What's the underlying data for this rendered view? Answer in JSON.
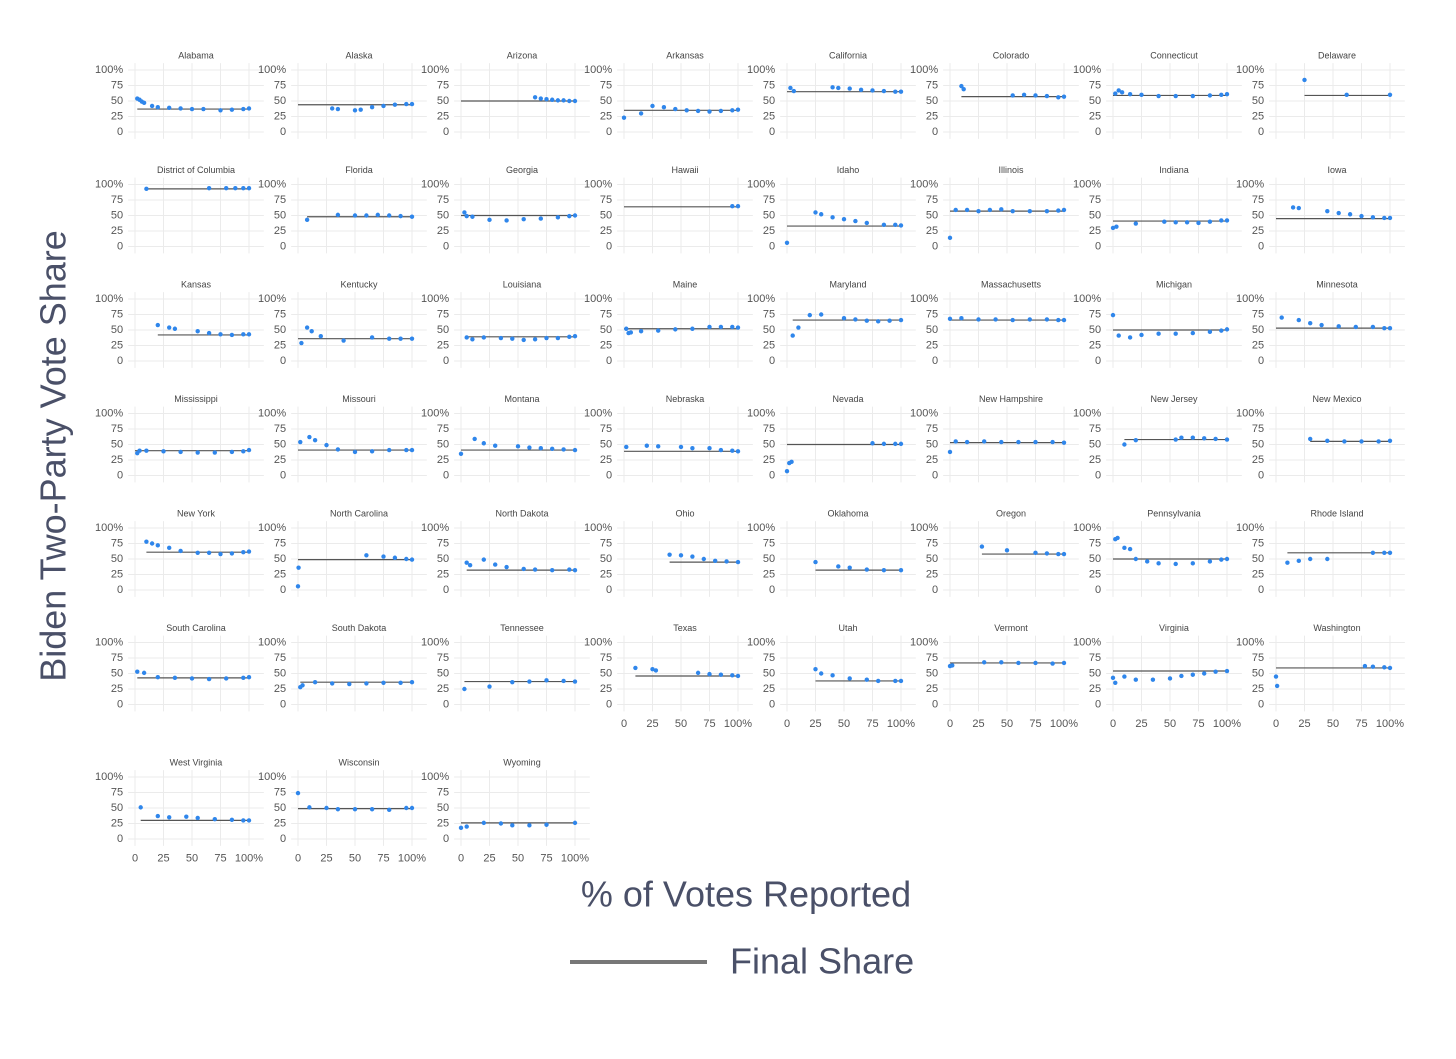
{
  "axes": {
    "ylabel": "Biden Two-Party Vote Share",
    "xlabel": "% of Votes Reported",
    "xlim": [
      -6,
      113
    ],
    "ylim": [
      -11,
      111
    ],
    "xticks": [
      0,
      25,
      50,
      75,
      {
        "value": 100,
        "label": "100%"
      }
    ],
    "yticks": [
      0,
      25,
      50,
      75,
      {
        "value": 100,
        "label": "100%"
      }
    ],
    "grid": true
  },
  "legend": {
    "label": "Final Share",
    "color": "#777777"
  },
  "point_color": "#2f86eb",
  "chart_data": [
    {
      "type": "scatter",
      "title": "Alabama",
      "x": [
        2,
        4,
        6,
        8,
        15,
        20,
        30,
        40,
        50,
        60,
        75,
        85,
        95,
        100
      ],
      "values": [
        54,
        52,
        49,
        47,
        42,
        40,
        39,
        38,
        37,
        37,
        35,
        36,
        37,
        38
      ],
      "final_share": 37
    },
    {
      "type": "scatter",
      "title": "Alaska",
      "x": [
        0,
        30,
        35,
        50,
        55,
        65,
        75,
        85,
        95,
        100
      ],
      "values": [
        null,
        38,
        37,
        35,
        36,
        40,
        42,
        44,
        45,
        45
      ],
      "final_share": 44
    },
    {
      "type": "scatter",
      "title": "Arizona",
      "x": [
        0,
        65,
        70,
        75,
        80,
        85,
        90,
        95,
        100
      ],
      "values": [
        null,
        56,
        54,
        53,
        52,
        51,
        51,
        50,
        50
      ],
      "final_share": 50
    },
    {
      "type": "scatter",
      "title": "Arkansas",
      "x": [
        0,
        15,
        25,
        35,
        45,
        55,
        65,
        75,
        85,
        95,
        100
      ],
      "values": [
        23,
        30,
        42,
        40,
        37,
        35,
        34,
        33,
        34,
        35,
        36
      ],
      "final_share": 35
    },
    {
      "type": "scatter",
      "title": "California",
      "x": [
        0,
        3,
        6,
        40,
        45,
        55,
        65,
        75,
        85,
        95,
        100
      ],
      "values": [
        null,
        71,
        66,
        72,
        71,
        70,
        68,
        67,
        66,
        65,
        65
      ],
      "final_share": 65
    },
    {
      "type": "scatter",
      "title": "Colorado",
      "x": [
        10,
        12,
        55,
        65,
        75,
        85,
        95,
        100
      ],
      "values": [
        74,
        69,
        59,
        60,
        59,
        58,
        56,
        57
      ],
      "final_share": 57
    },
    {
      "type": "scatter",
      "title": "Connecticut",
      "x": [
        0,
        2,
        5,
        8,
        15,
        25,
        40,
        55,
        70,
        85,
        95,
        100
      ],
      "values": [
        null,
        62,
        67,
        64,
        61,
        60,
        58,
        58,
        58,
        59,
        60,
        61
      ],
      "final_share": 59
    },
    {
      "type": "scatter",
      "title": "Delaware",
      "x": [
        25,
        62,
        100
      ],
      "values": [
        84,
        60,
        60
      ],
      "final_share": 59
    },
    {
      "type": "scatter",
      "title": "District of Columbia",
      "x": [
        10,
        65,
        80,
        88,
        95,
        100
      ],
      "values": [
        93,
        94,
        94,
        94,
        94,
        94
      ],
      "final_share": 93
    },
    {
      "type": "scatter",
      "title": "Florida",
      "x": [
        8,
        35,
        50,
        60,
        70,
        80,
        90,
        100
      ],
      "values": [
        43,
        51,
        50,
        50,
        51,
        50,
        49,
        48
      ],
      "final_share": 48
    },
    {
      "type": "scatter",
      "title": "Georgia",
      "x": [
        0,
        3,
        5,
        10,
        25,
        40,
        55,
        70,
        85,
        95,
        100
      ],
      "values": [
        null,
        55,
        49,
        48,
        43,
        42,
        44,
        45,
        47,
        49,
        50
      ],
      "final_share": 50
    },
    {
      "type": "scatter",
      "title": "Hawaii",
      "x": [
        0,
        95,
        100
      ],
      "values": [
        null,
        65,
        65
      ],
      "final_share": 64
    },
    {
      "type": "scatter",
      "title": "Idaho",
      "x": [
        0,
        25,
        30,
        40,
        50,
        60,
        70,
        85,
        95,
        100
      ],
      "values": [
        6,
        55,
        52,
        47,
        44,
        41,
        38,
        35,
        35,
        34
      ],
      "final_share": 33
    },
    {
      "type": "scatter",
      "title": "Illinois",
      "x": [
        0,
        5,
        15,
        25,
        35,
        45,
        55,
        70,
        85,
        95,
        100
      ],
      "values": [
        14,
        59,
        59,
        57,
        59,
        60,
        57,
        57,
        57,
        58,
        59
      ],
      "final_share": 57
    },
    {
      "type": "scatter",
      "title": "Indiana",
      "x": [
        0,
        3,
        20,
        45,
        55,
        65,
        75,
        85,
        95,
        100
      ],
      "values": [
        30,
        32,
        37,
        40,
        39,
        39,
        38,
        40,
        42,
        42
      ],
      "final_share": 41
    },
    {
      "type": "scatter",
      "title": "Iowa",
      "x": [
        0,
        15,
        20,
        45,
        55,
        65,
        75,
        85,
        95,
        100
      ],
      "values": [
        null,
        63,
        62,
        57,
        54,
        52,
        49,
        47,
        46,
        46
      ],
      "final_share": 45
    },
    {
      "type": "scatter",
      "title": "Kansas",
      "x": [
        20,
        30,
        35,
        55,
        65,
        75,
        85,
        95,
        100
      ],
      "values": [
        58,
        54,
        52,
        48,
        45,
        43,
        42,
        43,
        43
      ],
      "final_share": 42
    },
    {
      "type": "scatter",
      "title": "Kentucky",
      "x": [
        0,
        3,
        8,
        12,
        20,
        40,
        65,
        80,
        90,
        100
      ],
      "values": [
        null,
        29,
        54,
        48,
        40,
        33,
        38,
        36,
        36,
        36
      ],
      "final_share": 36
    },
    {
      "type": "scatter",
      "title": "Louisiana",
      "x": [
        5,
        10,
        20,
        35,
        45,
        55,
        65,
        75,
        85,
        95,
        100
      ],
      "values": [
        38,
        35,
        38,
        37,
        36,
        34,
        35,
        37,
        37,
        39,
        40
      ],
      "final_share": 39
    },
    {
      "type": "scatter",
      "title": "Maine",
      "x": [
        0,
        2,
        4,
        6,
        15,
        30,
        45,
        60,
        75,
        85,
        95,
        100
      ],
      "values": [
        null,
        52,
        45,
        46,
        48,
        49,
        51,
        52,
        55,
        55,
        55,
        54
      ],
      "final_share": 52
    },
    {
      "type": "scatter",
      "title": "Maryland",
      "x": [
        5,
        10,
        20,
        30,
        50,
        60,
        70,
        80,
        90,
        100
      ],
      "values": [
        41,
        54,
        74,
        75,
        69,
        67,
        65,
        64,
        65,
        66
      ],
      "final_share": 66
    },
    {
      "type": "scatter",
      "title": "Massachusetts",
      "x": [
        0,
        10,
        25,
        40,
        55,
        70,
        85,
        95,
        100
      ],
      "values": [
        68,
        69,
        67,
        67,
        66,
        67,
        67,
        66,
        66
      ],
      "final_share": 66
    },
    {
      "type": "scatter",
      "title": "Michigan",
      "x": [
        0,
        5,
        15,
        25,
        40,
        55,
        70,
        85,
        95,
        100
      ],
      "values": [
        74,
        41,
        38,
        42,
        44,
        44,
        45,
        47,
        49,
        51
      ],
      "final_share": 50
    },
    {
      "type": "scatter",
      "title": "Minnesota",
      "x": [
        0,
        5,
        20,
        30,
        40,
        55,
        70,
        85,
        95,
        100
      ],
      "values": [
        null,
        70,
        66,
        61,
        58,
        56,
        55,
        55,
        53,
        53
      ],
      "final_share": 53
    },
    {
      "type": "scatter",
      "title": "Mississippi",
      "x": [
        0,
        2,
        4,
        10,
        25,
        40,
        55,
        70,
        85,
        95,
        100
      ],
      "values": [
        null,
        36,
        40,
        40,
        39,
        38,
        37,
        37,
        38,
        39,
        41
      ],
      "final_share": 40
    },
    {
      "type": "scatter",
      "title": "Missouri",
      "x": [
        0,
        2,
        10,
        15,
        25,
        35,
        50,
        65,
        80,
        95,
        100
      ],
      "values": [
        null,
        54,
        62,
        57,
        49,
        42,
        38,
        39,
        41,
        41,
        41
      ],
      "final_share": 41
    },
    {
      "type": "scatter",
      "title": "Montana",
      "x": [
        0,
        12,
        20,
        30,
        50,
        60,
        70,
        80,
        90,
        100
      ],
      "values": [
        35,
        59,
        52,
        48,
        47,
        45,
        44,
        43,
        42,
        41
      ],
      "final_share": 41
    },
    {
      "type": "scatter",
      "title": "Nebraska",
      "x": [
        0,
        2,
        20,
        30,
        50,
        60,
        75,
        85,
        95,
        100
      ],
      "values": [
        null,
        46,
        48,
        47,
        46,
        44,
        44,
        41,
        40,
        39
      ],
      "final_share": 39
    },
    {
      "type": "scatter",
      "title": "Nevada",
      "x": [
        0,
        2,
        4,
        75,
        85,
        95,
        100
      ],
      "values": [
        7,
        20,
        22,
        52,
        51,
        51,
        51
      ],
      "final_share": 50
    },
    {
      "type": "scatter",
      "title": "New Hampshire",
      "x": [
        0,
        5,
        15,
        30,
        45,
        60,
        75,
        90,
        100
      ],
      "values": [
        38,
        55,
        54,
        55,
        54,
        54,
        54,
        54,
        53
      ],
      "final_share": 53
    },
    {
      "type": "scatter",
      "title": "New Jersey",
      "x": [
        10,
        20,
        55,
        60,
        70,
        80,
        90,
        100
      ],
      "values": [
        50,
        57,
        58,
        61,
        61,
        60,
        59,
        58
      ],
      "final_share": 58
    },
    {
      "type": "scatter",
      "title": "New Mexico",
      "x": [
        30,
        45,
        60,
        75,
        90,
        100
      ],
      "values": [
        59,
        56,
        55,
        55,
        55,
        56
      ],
      "final_share": 55
    },
    {
      "type": "scatter",
      "title": "New York",
      "x": [
        10,
        15,
        20,
        30,
        40,
        55,
        65,
        75,
        85,
        95,
        100
      ],
      "values": [
        78,
        75,
        72,
        68,
        63,
        60,
        60,
        58,
        59,
        61,
        62
      ],
      "final_share": 61
    },
    {
      "type": "scatter",
      "title": "North Carolina",
      "x": [
        0,
        0.5,
        60,
        75,
        85,
        95,
        100
      ],
      "values": [
        6,
        36,
        56,
        54,
        52,
        50,
        49
      ],
      "final_share": 49
    },
    {
      "type": "scatter",
      "title": "North Dakota",
      "x": [
        5,
        8,
        20,
        30,
        40,
        55,
        65,
        80,
        95,
        100
      ],
      "values": [
        44,
        40,
        49,
        41,
        37,
        34,
        33,
        32,
        33,
        32
      ],
      "final_share": 32
    },
    {
      "type": "scatter",
      "title": "Ohio",
      "x": [
        40,
        50,
        60,
        70,
        80,
        90,
        100
      ],
      "values": [
        57,
        56,
        54,
        50,
        47,
        46,
        45
      ],
      "final_share": 45
    },
    {
      "type": "scatter",
      "title": "Oklahoma",
      "x": [
        25,
        45,
        55,
        70,
        85,
        100
      ],
      "values": [
        45,
        38,
        36,
        33,
        32,
        32
      ],
      "final_share": 32
    },
    {
      "type": "scatter",
      "title": "Oregon",
      "x": [
        28,
        50,
        75,
        85,
        95,
        100
      ],
      "values": [
        70,
        64,
        60,
        59,
        58,
        58
      ],
      "final_share": 58
    },
    {
      "type": "scatter",
      "title": "Pennsylvania",
      "x": [
        0,
        2,
        4,
        10,
        15,
        20,
        30,
        40,
        55,
        70,
        85,
        95,
        100
      ],
      "values": [
        null,
        82,
        84,
        68,
        66,
        50,
        46,
        43,
        42,
        43,
        46,
        49,
        50
      ],
      "final_share": 50
    },
    {
      "type": "scatter",
      "title": "Rhode Island",
      "x": [
        10,
        20,
        30,
        45,
        85,
        95,
        100
      ],
      "values": [
        44,
        47,
        50,
        50,
        60,
        60,
        60
      ],
      "final_share": 60
    },
    {
      "type": "scatter",
      "title": "South Carolina",
      "x": [
        2,
        8,
        20,
        35,
        50,
        65,
        80,
        95,
        100
      ],
      "values": [
        53,
        51,
        44,
        43,
        42,
        41,
        42,
        43,
        44
      ],
      "final_share": 43
    },
    {
      "type": "scatter",
      "title": "South Dakota",
      "x": [
        2,
        4,
        15,
        30,
        45,
        60,
        75,
        90,
        100
      ],
      "values": [
        28,
        31,
        36,
        34,
        33,
        34,
        35,
        35,
        36
      ],
      "final_share": 36
    },
    {
      "type": "scatter",
      "title": "Tennessee",
      "x": [
        3,
        25,
        45,
        60,
        75,
        90,
        100
      ],
      "values": [
        25,
        29,
        36,
        37,
        39,
        38,
        37
      ],
      "final_share": 37
    },
    {
      "type": "scatter",
      "title": "Texas",
      "x": [
        10,
        25,
        28,
        65,
        75,
        85,
        95,
        100
      ],
      "values": [
        59,
        57,
        55,
        51,
        49,
        48,
        47,
        46
      ],
      "final_share": 46
    },
    {
      "type": "scatter",
      "title": "Utah",
      "x": [
        25,
        30,
        40,
        55,
        70,
        80,
        95,
        100
      ],
      "values": [
        57,
        50,
        47,
        42,
        40,
        38,
        38,
        38
      ],
      "final_share": 38
    },
    {
      "type": "scatter",
      "title": "Vermont",
      "x": [
        0,
        2,
        30,
        45,
        60,
        75,
        90,
        100
      ],
      "values": [
        62,
        63,
        68,
        68,
        67,
        67,
        66,
        67
      ],
      "final_share": 67
    },
    {
      "type": "scatter",
      "title": "Virginia",
      "x": [
        0,
        2,
        10,
        20,
        35,
        50,
        60,
        70,
        80,
        90,
        100
      ],
      "values": [
        43,
        35,
        45,
        40,
        40,
        42,
        46,
        48,
        50,
        53,
        54
      ],
      "final_share": 54
    },
    {
      "type": "scatter",
      "title": "Washington",
      "x": [
        0,
        1,
        78,
        85,
        95,
        100
      ],
      "values": [
        45,
        30,
        62,
        61,
        60,
        59
      ],
      "final_share": 59
    },
    {
      "type": "scatter",
      "title": "West Virginia",
      "x": [
        5,
        20,
        30,
        45,
        55,
        70,
        85,
        95,
        100
      ],
      "values": [
        51,
        37,
        35,
        36,
        34,
        32,
        31,
        30,
        30
      ],
      "final_share": 30
    },
    {
      "type": "scatter",
      "title": "Wisconsin",
      "x": [
        0,
        10,
        25,
        35,
        50,
        65,
        80,
        95,
        100
      ],
      "values": [
        74,
        51,
        50,
        48,
        48,
        48,
        47,
        50,
        50
      ],
      "final_share": 49
    },
    {
      "type": "scatter",
      "title": "Wyoming",
      "x": [
        0,
        5,
        20,
        35,
        45,
        60,
        75,
        100
      ],
      "values": [
        18,
        20,
        26,
        25,
        22,
        22,
        23,
        26
      ],
      "final_share": 26
    }
  ]
}
